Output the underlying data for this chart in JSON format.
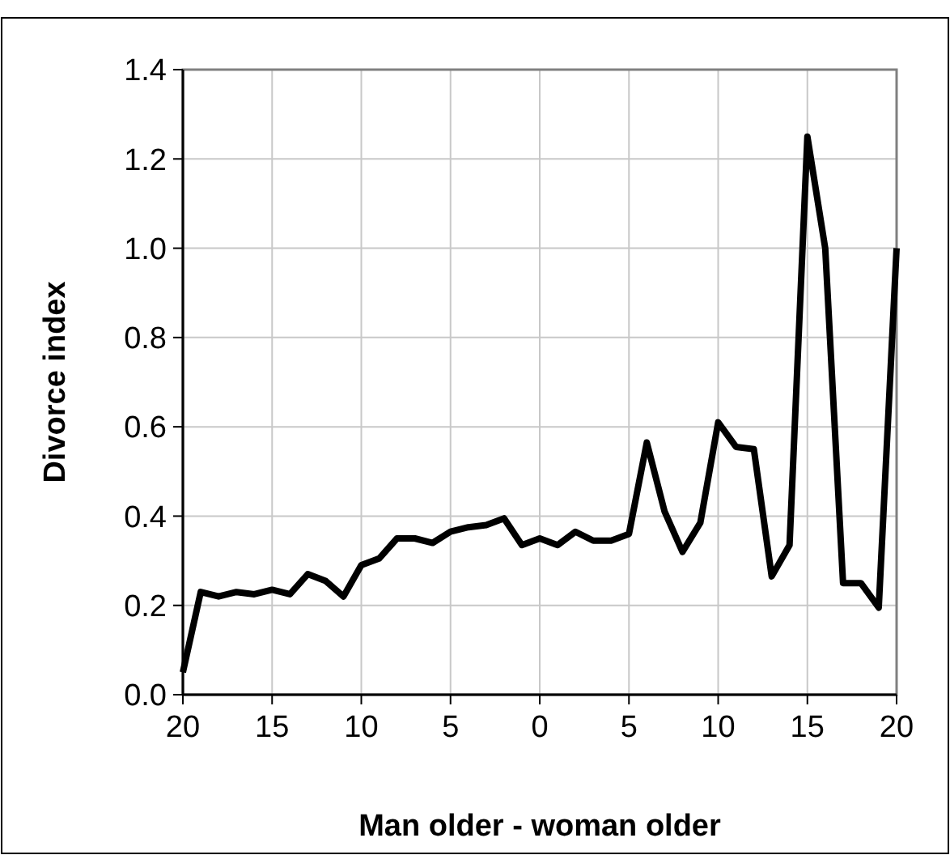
{
  "chart_data": {
    "type": "line",
    "xlabel": "Man older - woman older",
    "ylabel": "Divorce index",
    "x": [
      -20,
      -19,
      -18,
      -17,
      -16,
      -15,
      -14,
      -13,
      -12,
      -11,
      -10,
      -9,
      -8,
      -7,
      -6,
      -5,
      -4,
      -3,
      -2,
      -1,
      0,
      1,
      2,
      3,
      4,
      5,
      6,
      7,
      8,
      9,
      10,
      11,
      12,
      13,
      14,
      15,
      16,
      17,
      18,
      19,
      20
    ],
    "series": [
      {
        "color": "#000000",
        "values": [
          0.05,
          0.23,
          0.22,
          0.23,
          0.225,
          0.235,
          0.225,
          0.27,
          0.255,
          0.22,
          0.29,
          0.305,
          0.35,
          0.35,
          0.34,
          0.365,
          0.375,
          0.38,
          0.395,
          0.335,
          0.35,
          0.335,
          0.365,
          0.345,
          0.345,
          0.36,
          0.565,
          0.41,
          0.32,
          0.385,
          0.61,
          0.555,
          0.55,
          0.265,
          0.335,
          1.25,
          1.0,
          0.25,
          0.25,
          0.195,
          1.0
        ]
      }
    ],
    "xlim": [
      -20,
      20
    ],
    "xticks": [
      {
        "value": -20,
        "label": "20"
      },
      {
        "value": -15,
        "label": "15"
      },
      {
        "value": -10,
        "label": "10"
      },
      {
        "value": -5,
        "label": "5"
      },
      0,
      5,
      10,
      15,
      20
    ],
    "ylim": [
      0,
      1.4
    ],
    "yticks": [
      {
        "value": 0,
        "label": "0.0"
      },
      {
        "value": 0.2,
        "label": "0.2"
      },
      {
        "value": 0.4,
        "label": "0.4"
      },
      {
        "value": 0.6,
        "label": "0.6"
      },
      {
        "value": 0.8,
        "label": "0.8"
      },
      {
        "value": 1.0,
        "label": "1.0"
      },
      {
        "value": 1.2,
        "label": "1.2"
      },
      {
        "value": 1.4,
        "label": "1.4"
      }
    ],
    "grid": true,
    "marker": "none",
    "line_style": "solid"
  }
}
